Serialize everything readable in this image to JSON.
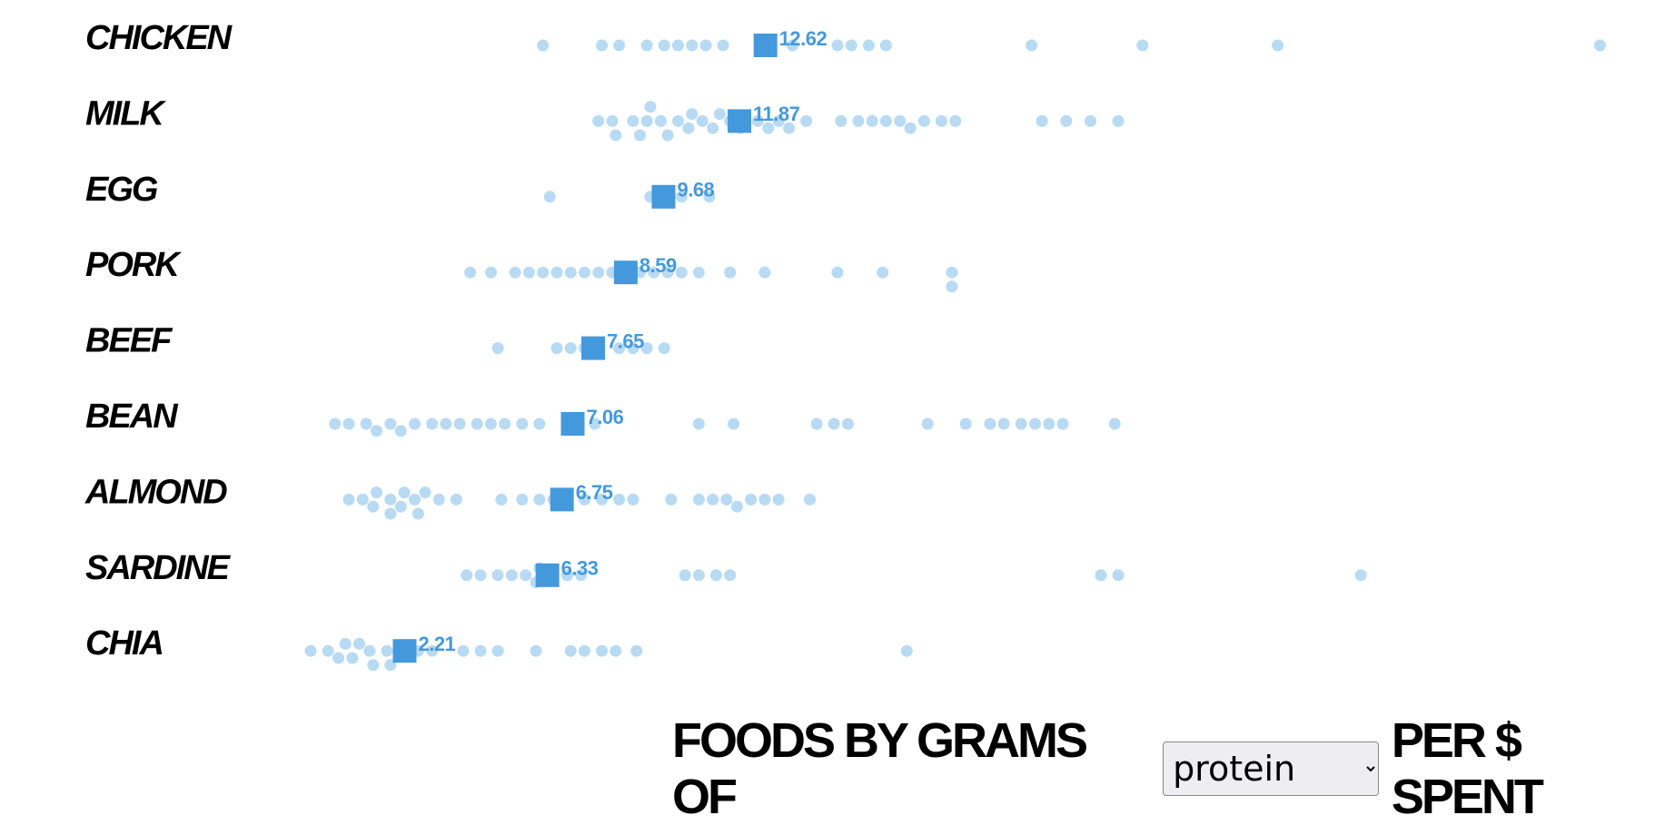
{
  "chart_data": {
    "type": "strip",
    "categories": [
      "CHICKEN",
      "MILK",
      "EGG",
      "PORK",
      "BEEF",
      "BEAN",
      "ALMOND",
      "SARDINE",
      "CHIA"
    ],
    "medians": [
      12.62,
      11.87,
      9.68,
      8.59,
      7.65,
      7.06,
      6.75,
      6.33,
      2.21
    ],
    "points": [
      [
        6.2,
        7.9,
        8.4,
        9.2,
        9.7,
        10.1,
        10.5,
        10.9,
        11.4,
        13.4,
        14.7,
        15.1,
        15.6,
        16.1,
        20.3,
        23.5,
        27.4,
        36.7
      ],
      [
        7.8,
        8.2,
        8.3,
        8.8,
        9.0,
        9.2,
        9.3,
        9.6,
        9.8,
        10.1,
        10.4,
        10.5,
        10.8,
        11.1,
        11.3,
        11.6,
        11.9,
        12.4,
        12.7,
        13.0,
        13.3,
        13.8,
        14.8,
        15.3,
        15.7,
        16.1,
        16.5,
        16.8,
        17.2,
        17.7,
        18.1,
        20.6,
        21.3,
        22.0,
        22.8
      ],
      [
        6.4,
        9.3,
        10.2,
        11.0
      ],
      [
        4.1,
        4.7,
        5.4,
        5.8,
        6.2,
        6.6,
        7.0,
        7.4,
        7.8,
        8.2,
        9.0,
        9.4,
        9.8,
        10.2,
        10.7,
        11.6,
        12.6,
        14.7,
        16.0,
        18.0,
        18.0
      ],
      [
        4.9,
        6.6,
        7.0,
        7.4,
        8.4,
        8.8,
        9.2,
        9.7
      ],
      [
        0.2,
        0.6,
        1.1,
        1.4,
        1.8,
        2.1,
        2.5,
        3.0,
        3.4,
        3.8,
        4.3,
        4.7,
        5.1,
        5.6,
        6.1,
        7.7,
        10.7,
        11.7,
        14.1,
        14.6,
        15.0,
        17.3,
        18.4,
        19.1,
        19.5,
        20.0,
        20.4,
        20.8,
        21.2,
        22.7
      ],
      [
        0.6,
        1.0,
        1.3,
        1.4,
        1.8,
        1.8,
        2.1,
        2.2,
        2.5,
        2.6,
        2.8,
        3.2,
        3.7,
        5.0,
        5.6,
        6.1,
        6.5,
        6.9,
        7.4,
        7.9,
        8.4,
        8.8,
        9.9,
        10.7,
        11.1,
        11.5,
        11.8,
        12.2,
        12.6,
        13.0,
        13.9
      ],
      [
        4.0,
        4.4,
        4.9,
        5.3,
        5.7,
        6.0,
        6.1,
        6.9,
        7.3,
        10.3,
        10.7,
        11.2,
        11.6,
        22.3,
        22.8,
        29.8
      ],
      [
        -0.5,
        0.0,
        0.3,
        0.5,
        0.7,
        0.9,
        1.2,
        1.3,
        1.7,
        1.8,
        2.6,
        3.0,
        3.9,
        4.4,
        4.9,
        6.0,
        7.0,
        7.4,
        7.9,
        8.3,
        8.9,
        16.7
      ]
    ],
    "xlim": [
      -1,
      38
    ],
    "point_color": "#b8daf3",
    "median_color": "#4499dd",
    "title_prefix": "FOODS BY GRAMS OF",
    "nutrient": "protein",
    "title_suffix": "PER $ SPENT"
  }
}
